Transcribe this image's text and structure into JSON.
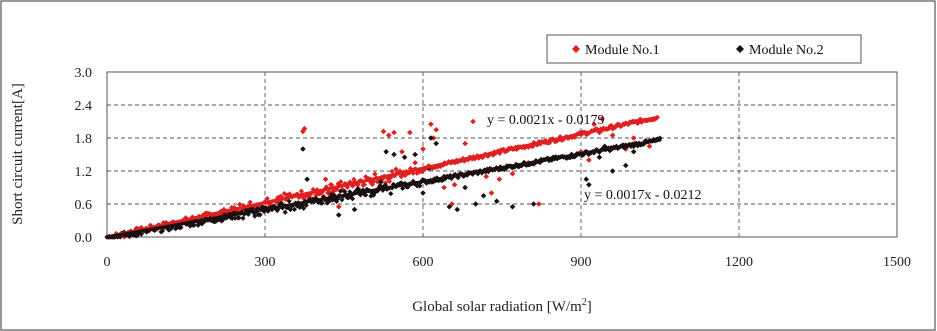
{
  "chart_data": {
    "type": "scatter",
    "xlabel": "Global solar radiation [W/m",
    "xlabel_sup": "2",
    "xlabel_close": "]",
    "ylabel": "Short circuit current[A]",
    "xlim": [
      0,
      1500
    ],
    "ylim": [
      0,
      3.0
    ],
    "x_ticks": [
      "0",
      "300",
      "600",
      "900",
      "1200",
      "1500"
    ],
    "y_ticks": [
      "0.0",
      "0.6",
      "1.2",
      "1.8",
      "2.4",
      "3.0"
    ],
    "grid": true,
    "legend_position": "top-right",
    "series": [
      {
        "name": "Module No.1",
        "color": "#e02020",
        "marker": "diamond",
        "trend_slope": 0.0021,
        "trend_intercept": -0.0179,
        "trend_x_range": [
          0,
          1045
        ],
        "equation": "y = 0.0021x - 0.0179",
        "outliers": [
          [
            375,
            1.97
          ],
          [
            372,
            1.92
          ],
          [
            415,
            1.05
          ],
          [
            425,
            0.95
          ],
          [
            440,
            0.55
          ],
          [
            470,
            1.0
          ],
          [
            500,
            1.05
          ],
          [
            525,
            1.92
          ],
          [
            535,
            1.85
          ],
          [
            545,
            1.9
          ],
          [
            560,
            1.55
          ],
          [
            575,
            1.9
          ],
          [
            585,
            1.35
          ],
          [
            600,
            1.6
          ],
          [
            615,
            2.05
          ],
          [
            620,
            1.8
          ],
          [
            625,
            1.95
          ],
          [
            640,
            0.9
          ],
          [
            655,
            0.6
          ],
          [
            660,
            0.95
          ],
          [
            680,
            1.7
          ],
          [
            695,
            2.1
          ],
          [
            720,
            1.1
          ],
          [
            730,
            0.8
          ],
          [
            745,
            1.05
          ],
          [
            770,
            1.15
          ],
          [
            800,
            1.35
          ],
          [
            820,
            0.6
          ],
          [
            900,
            1.55
          ],
          [
            915,
            1.4
          ],
          [
            925,
            2.05
          ],
          [
            935,
            1.9
          ],
          [
            940,
            2.15
          ],
          [
            960,
            1.85
          ],
          [
            985,
            1.6
          ],
          [
            1000,
            1.8
          ],
          [
            1030,
            1.65
          ]
        ]
      },
      {
        "name": "Module No.2",
        "color": "#1a1010",
        "marker": "diamond",
        "trend_slope": 0.0017,
        "trend_intercept": -0.0212,
        "trend_x_range": [
          0,
          1050
        ],
        "equation": "y = 0.0017x - 0.0212",
        "outliers": [
          [
            372,
            1.6
          ],
          [
            380,
            1.05
          ],
          [
            440,
            0.4
          ],
          [
            470,
            0.5
          ],
          [
            520,
            1.0
          ],
          [
            530,
            1.55
          ],
          [
            545,
            1.5
          ],
          [
            555,
            0.95
          ],
          [
            565,
            1.45
          ],
          [
            585,
            1.5
          ],
          [
            600,
            0.8
          ],
          [
            610,
            1.25
          ],
          [
            615,
            1.8
          ],
          [
            625,
            1.7
          ],
          [
            640,
            1.1
          ],
          [
            650,
            0.55
          ],
          [
            665,
            0.5
          ],
          [
            680,
            0.9
          ],
          [
            700,
            0.6
          ],
          [
            715,
            0.75
          ],
          [
            740,
            0.65
          ],
          [
            770,
            0.55
          ],
          [
            810,
            0.6
          ],
          [
            910,
            1.05
          ],
          [
            915,
            0.95
          ],
          [
            925,
            1.55
          ],
          [
            935,
            1.45
          ],
          [
            945,
            1.65
          ],
          [
            960,
            1.2
          ],
          [
            985,
            1.3
          ],
          [
            1000,
            1.55
          ]
        ]
      }
    ]
  }
}
